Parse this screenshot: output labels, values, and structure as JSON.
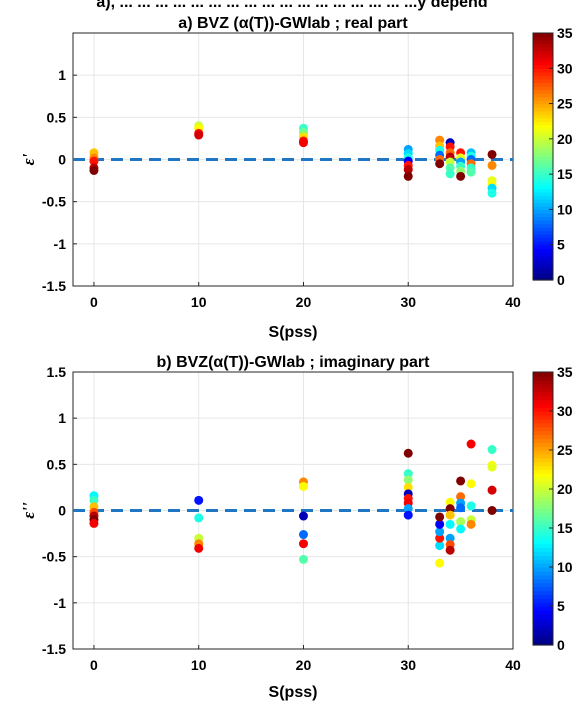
{
  "top_fragment": "a), ... ... ... ... ... ... ... ... ... ... ... ... ... ... ... ... ...y depend",
  "chart_data": [
    {
      "type": "scatter",
      "title": "a) BVZ (α(T))-GWlab ; real part",
      "xlabel": "S(pss)",
      "ylabel": "ε'",
      "xlim": [
        -2,
        40
      ],
      "ylim": [
        -1.5,
        1.5
      ],
      "xticks": [
        0,
        10,
        20,
        30,
        40
      ],
      "yticks": [
        -1.5,
        -1,
        -0.5,
        0,
        0.5,
        1
      ],
      "ytick_labels": [
        "-1.5",
        "-1",
        "-0.5",
        "0",
        "0.5",
        "1"
      ],
      "grid": true,
      "reference_line": {
        "y": 0,
        "style": "dashed",
        "color": "#1f77c4"
      },
      "colorbar": {
        "colormap": "jet",
        "range": [
          0,
          35
        ],
        "ticks": [
          0,
          5,
          10,
          15,
          20,
          25,
          30,
          35
        ]
      },
      "points": [
        {
          "x": 0,
          "y": 0.08,
          "c": 24
        },
        {
          "x": 0,
          "y": 0.02,
          "c": 26
        },
        {
          "x": 0,
          "y": -0.02,
          "c": 30
        },
        {
          "x": 0,
          "y": -0.1,
          "c": 33
        },
        {
          "x": 0,
          "y": -0.13,
          "c": 35
        },
        {
          "x": 10,
          "y": 0.4,
          "c": 20
        },
        {
          "x": 10,
          "y": 0.37,
          "c": 22
        },
        {
          "x": 10,
          "y": 0.31,
          "c": 30
        },
        {
          "x": 10,
          "y": 0.29,
          "c": 32
        },
        {
          "x": 20,
          "y": 0.37,
          "c": 15
        },
        {
          "x": 20,
          "y": 0.32,
          "c": 17
        },
        {
          "x": 20,
          "y": 0.27,
          "c": 23
        },
        {
          "x": 20,
          "y": 0.22,
          "c": 30
        },
        {
          "x": 20,
          "y": 0.2,
          "c": 31
        },
        {
          "x": 30,
          "y": 0.12,
          "c": 10
        },
        {
          "x": 30,
          "y": 0.07,
          "c": 12
        },
        {
          "x": 30,
          "y": 0.02,
          "c": 14
        },
        {
          "x": 30,
          "y": -0.02,
          "c": 4
        },
        {
          "x": 30,
          "y": -0.07,
          "c": 30
        },
        {
          "x": 30,
          "y": -0.12,
          "c": 33
        },
        {
          "x": 30,
          "y": -0.2,
          "c": 35
        },
        {
          "x": 33,
          "y": 0.23,
          "c": 26
        },
        {
          "x": 33,
          "y": 0.16,
          "c": 24
        },
        {
          "x": 33,
          "y": 0.11,
          "c": 14
        },
        {
          "x": 33,
          "y": 0.05,
          "c": 8
        },
        {
          "x": 33,
          "y": 0.0,
          "c": 27
        },
        {
          "x": 33,
          "y": -0.05,
          "c": 35
        },
        {
          "x": 34,
          "y": 0.2,
          "c": 2
        },
        {
          "x": 34,
          "y": 0.15,
          "c": 30
        },
        {
          "x": 34,
          "y": 0.08,
          "c": 27
        },
        {
          "x": 34,
          "y": 0.03,
          "c": 33
        },
        {
          "x": 34,
          "y": -0.03,
          "c": 20
        },
        {
          "x": 34,
          "y": -0.1,
          "c": 16
        },
        {
          "x": 34,
          "y": -0.17,
          "c": 15
        },
        {
          "x": 35,
          "y": 0.08,
          "c": 30
        },
        {
          "x": 35,
          "y": 0.02,
          "c": 21
        },
        {
          "x": 35,
          "y": -0.03,
          "c": 10
        },
        {
          "x": 35,
          "y": -0.08,
          "c": 15
        },
        {
          "x": 35,
          "y": -0.14,
          "c": 18
        },
        {
          "x": 35,
          "y": -0.2,
          "c": 35
        },
        {
          "x": 36,
          "y": 0.08,
          "c": 11
        },
        {
          "x": 36,
          "y": 0.04,
          "c": 14
        },
        {
          "x": 36,
          "y": 0.0,
          "c": 8
        },
        {
          "x": 36,
          "y": -0.05,
          "c": 27
        },
        {
          "x": 36,
          "y": -0.1,
          "c": 15
        },
        {
          "x": 36,
          "y": -0.15,
          "c": 16
        },
        {
          "x": 38,
          "y": 0.06,
          "c": 35
        },
        {
          "x": 38,
          "y": -0.07,
          "c": 26
        },
        {
          "x": 38,
          "y": -0.25,
          "c": 21
        },
        {
          "x": 38,
          "y": -0.3,
          "c": 22
        },
        {
          "x": 38,
          "y": -0.34,
          "c": 12
        },
        {
          "x": 38,
          "y": -0.4,
          "c": 14
        }
      ]
    },
    {
      "type": "scatter",
      "title": "b) BVZ(α(T))-GWlab ; imaginary part",
      "xlabel": "S(pss)",
      "ylabel": "ε''",
      "xlim": [
        -2,
        40
      ],
      "ylim": [
        -1.5,
        1.5
      ],
      "xticks": [
        0,
        10,
        20,
        30,
        40
      ],
      "yticks": [
        -1.5,
        -1,
        -0.5,
        0,
        0.5,
        1,
        1.5
      ],
      "ytick_labels": [
        "-1.5",
        "-1",
        "-0.5",
        "0",
        "0.5",
        "1",
        "1.5"
      ],
      "grid": true,
      "reference_line": {
        "y": 0,
        "style": "dashed",
        "color": "#1f77c4"
      },
      "colorbar": {
        "colormap": "jet",
        "range": [
          0,
          35
        ],
        "ticks": [
          0,
          5,
          10,
          15,
          20,
          25,
          30,
          35
        ]
      },
      "points": [
        {
          "x": 0,
          "y": 0.16,
          "c": 13
        },
        {
          "x": 0,
          "y": 0.11,
          "c": 15
        },
        {
          "x": 0,
          "y": 0.04,
          "c": 24
        },
        {
          "x": 0,
          "y": -0.02,
          "c": 28
        },
        {
          "x": 0,
          "y": -0.06,
          "c": 33
        },
        {
          "x": 0,
          "y": -0.1,
          "c": 35
        },
        {
          "x": 0,
          "y": -0.14,
          "c": 31
        },
        {
          "x": 10,
          "y": 0.11,
          "c": 5
        },
        {
          "x": 10,
          "y": -0.08,
          "c": 14
        },
        {
          "x": 10,
          "y": -0.3,
          "c": 20
        },
        {
          "x": 10,
          "y": -0.36,
          "c": 26
        },
        {
          "x": 10,
          "y": -0.41,
          "c": 31
        },
        {
          "x": 20,
          "y": 0.31,
          "c": 26
        },
        {
          "x": 20,
          "y": 0.26,
          "c": 22
        },
        {
          "x": 20,
          "y": -0.06,
          "c": 2
        },
        {
          "x": 20,
          "y": -0.26,
          "c": 8
        },
        {
          "x": 20,
          "y": -0.36,
          "c": 31
        },
        {
          "x": 20,
          "y": -0.53,
          "c": 16
        },
        {
          "x": 30,
          "y": 0.62,
          "c": 35
        },
        {
          "x": 30,
          "y": 0.4,
          "c": 15
        },
        {
          "x": 30,
          "y": 0.33,
          "c": 18
        },
        {
          "x": 30,
          "y": 0.25,
          "c": 23
        },
        {
          "x": 30,
          "y": 0.18,
          "c": 2
        },
        {
          "x": 30,
          "y": 0.13,
          "c": 30
        },
        {
          "x": 30,
          "y": 0.08,
          "c": 31
        },
        {
          "x": 30,
          "y": 0.02,
          "c": 10
        },
        {
          "x": 30,
          "y": -0.05,
          "c": 5
        },
        {
          "x": 33,
          "y": -0.57,
          "c": 22
        },
        {
          "x": 33,
          "y": -0.38,
          "c": 12
        },
        {
          "x": 33,
          "y": -0.3,
          "c": 30
        },
        {
          "x": 33,
          "y": -0.23,
          "c": 10
        },
        {
          "x": 33,
          "y": -0.15,
          "c": 4
        },
        {
          "x": 33,
          "y": -0.07,
          "c": 35
        },
        {
          "x": 34,
          "y": 0.09,
          "c": 22
        },
        {
          "x": 34,
          "y": 0.02,
          "c": 35
        },
        {
          "x": 34,
          "y": -0.05,
          "c": 24
        },
        {
          "x": 34,
          "y": -0.15,
          "c": 13
        },
        {
          "x": 34,
          "y": -0.3,
          "c": 10
        },
        {
          "x": 34,
          "y": -0.37,
          "c": 28
        },
        {
          "x": 34,
          "y": -0.43,
          "c": 33
        },
        {
          "x": 35,
          "y": 0.32,
          "c": 35
        },
        {
          "x": 35,
          "y": 0.15,
          "c": 27
        },
        {
          "x": 35,
          "y": 0.08,
          "c": 10
        },
        {
          "x": 35,
          "y": 0.03,
          "c": 8
        },
        {
          "x": 35,
          "y": -0.12,
          "c": 19
        },
        {
          "x": 35,
          "y": -0.2,
          "c": 13
        },
        {
          "x": 36,
          "y": 0.72,
          "c": 31
        },
        {
          "x": 36,
          "y": 0.29,
          "c": 22
        },
        {
          "x": 36,
          "y": 0.05,
          "c": 14
        },
        {
          "x": 36,
          "y": -0.1,
          "c": 20
        },
        {
          "x": 36,
          "y": -0.15,
          "c": 26
        },
        {
          "x": 38,
          "y": 0.66,
          "c": 15
        },
        {
          "x": 38,
          "y": 0.49,
          "c": 22
        },
        {
          "x": 38,
          "y": 0.47,
          "c": 21
        },
        {
          "x": 38,
          "y": 0.22,
          "c": 32
        },
        {
          "x": 38,
          "y": 0.0,
          "c": 35
        }
      ]
    }
  ]
}
